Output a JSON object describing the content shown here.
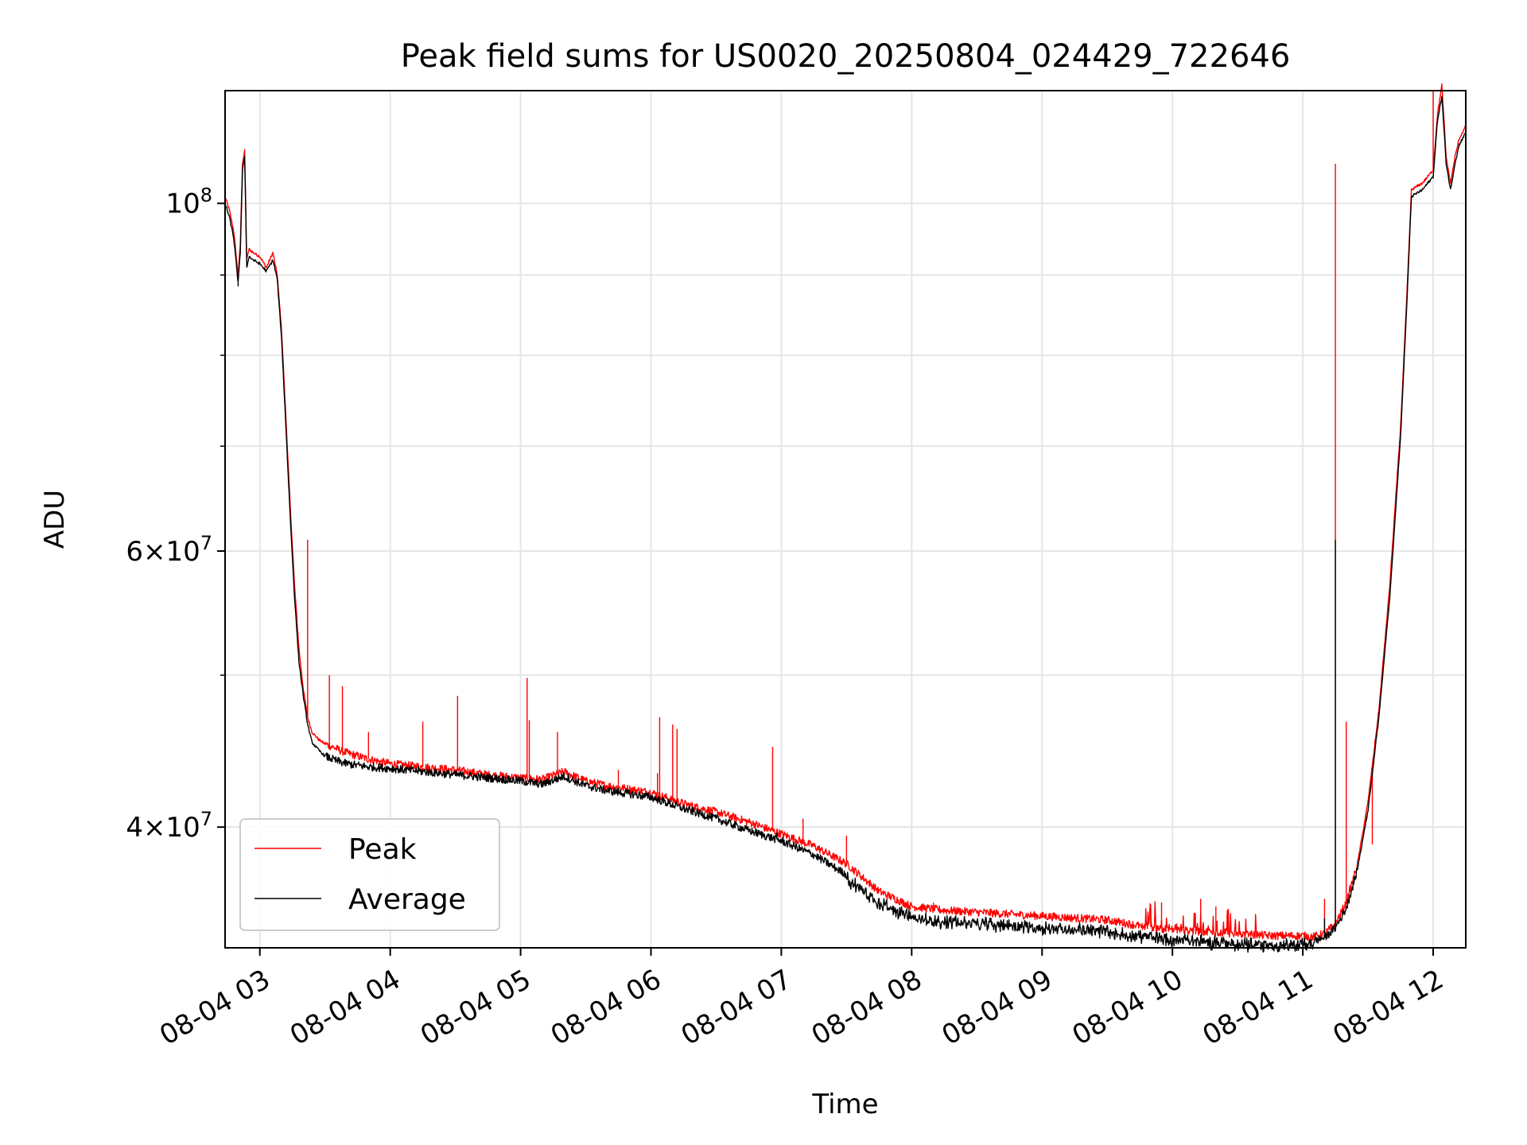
{
  "chart_data": {
    "type": "line",
    "title": "Peak field sums for US0020_20250804_024429_722646",
    "xlabel": "Time",
    "ylabel": "ADU",
    "x_unit": "time of day on 2025-08-04",
    "x_tick_labels": [
      "08-04 03",
      "08-04 04",
      "08-04 05",
      "08-04 06",
      "08-04 07",
      "08-04 08",
      "08-04 09",
      "08-04 10",
      "08-04 11",
      "08-04 12"
    ],
    "x_tick_times": [
      "03:00",
      "04:00",
      "05:00",
      "06:00",
      "07:00",
      "08:00",
      "09:00",
      "10:00",
      "11:00",
      "12:00"
    ],
    "xlim": [
      "02:44",
      "12:15"
    ],
    "y_scale": "log",
    "ylim": [
      33500000,
      118000000
    ],
    "y_major_ticks": [
      {
        "value": 100000000,
        "base": "10",
        "exp": "8",
        "mantissa": ""
      },
      {
        "value": 60000000,
        "base": "10",
        "exp": "7",
        "mantissa": "6"
      },
      {
        "value": 40000000,
        "base": "10",
        "exp": "7",
        "mantissa": "4"
      }
    ],
    "y_minor_ticks": [
      40000000,
      50000000,
      60000000,
      70000000,
      80000000,
      90000000
    ],
    "grid": true,
    "legend_position": "lower-left",
    "series": [
      {
        "name": "Peak",
        "color": "#ff0000",
        "x": [
          "02:44",
          "02:46",
          "02:48",
          "02:50",
          "02:51",
          "02:52",
          "02:53",
          "02:54",
          "02:55",
          "02:57",
          "03:00",
          "03:03",
          "03:06",
          "03:08",
          "03:10",
          "03:12",
          "03:14",
          "03:16",
          "03:18",
          "03:20",
          "03:22",
          "03:24",
          "03:27",
          "03:30",
          "03:35",
          "03:40",
          "03:50",
          "04:00",
          "04:15",
          "04:30",
          "04:45",
          "05:00",
          "05:10",
          "05:20",
          "05:30",
          "05:40",
          "05:50",
          "06:00",
          "06:15",
          "06:30",
          "06:45",
          "07:00",
          "07:15",
          "07:30",
          "07:45",
          "08:00",
          "08:15",
          "08:30",
          "08:45",
          "09:00",
          "09:15",
          "09:30",
          "09:45",
          "10:00",
          "10:15",
          "10:30",
          "10:45",
          "11:00",
          "11:05",
          "11:10",
          "11:15",
          "11:20",
          "11:25",
          "11:30",
          "11:35",
          "11:40",
          "11:45",
          "11:48",
          "11:50",
          "11:55",
          "12:00",
          "12:02",
          "12:04",
          "12:06",
          "12:08",
          "12:10",
          "12:12",
          "12:15"
        ],
        "y": [
          101000000,
          99000000,
          96000000,
          90000000,
          94000000,
          106000000,
          108000000,
          92000000,
          93500000,
          93000000,
          92500000,
          91000000,
          93000000,
          90000000,
          83000000,
          73000000,
          64000000,
          57000000,
          52000000,
          49000000,
          47000000,
          46000000,
          45500000,
          45200000,
          44900000,
          44600000,
          44200000,
          43900000,
          43700000,
          43500000,
          43200000,
          43000000,
          42900000,
          43400000,
          42800000,
          42500000,
          42300000,
          42100000,
          41400000,
          40900000,
          40300000,
          39600000,
          38900000,
          37900000,
          36400000,
          35600000,
          35400000,
          35300000,
          35200000,
          35100000,
          35000000,
          34900000,
          34600000,
          34400000,
          34300000,
          34200000,
          34100000,
          34100000,
          34050000,
          34200000,
          34700000,
          35800000,
          37800000,
          41500000,
          47500000,
          57000000,
          72000000,
          88000000,
          102000000,
          103000000,
          105000000,
          114000000,
          119000000,
          107000000,
          103000000,
          107000000,
          110000000,
          112000000
        ],
        "spikes": [
          {
            "x": "02:53",
            "y": 108000000
          },
          {
            "x": "03:22",
            "y": 61000000
          },
          {
            "x": "03:32",
            "y": 50000000
          },
          {
            "x": "03:38",
            "y": 49200000
          },
          {
            "x": "03:50",
            "y": 46000000
          },
          {
            "x": "04:15",
            "y": 46700000
          },
          {
            "x": "04:31",
            "y": 48500000
          },
          {
            "x": "05:03",
            "y": 49800000
          },
          {
            "x": "05:04",
            "y": 46800000
          },
          {
            "x": "05:17",
            "y": 46000000
          },
          {
            "x": "05:45",
            "y": 43500000
          },
          {
            "x": "06:03",
            "y": 43300000
          },
          {
            "x": "06:04",
            "y": 47000000
          },
          {
            "x": "06:10",
            "y": 46500000
          },
          {
            "x": "06:12",
            "y": 46200000
          },
          {
            "x": "06:56",
            "y": 45000000
          },
          {
            "x": "07:10",
            "y": 40500000
          },
          {
            "x": "07:30",
            "y": 39500000
          },
          {
            "x": "08:10",
            "y": 35800000
          },
          {
            "x": "09:50",
            "y": 35700000
          },
          {
            "x": "09:55",
            "y": 35800000
          },
          {
            "x": "10:13",
            "y": 36000000
          },
          {
            "x": "10:20",
            "y": 35600000
          },
          {
            "x": "11:10",
            "y": 36000000
          },
          {
            "x": "11:15",
            "y": 106000000
          },
          {
            "x": "11:20",
            "y": 46700000
          },
          {
            "x": "11:29",
            "y": 40300000
          },
          {
            "x": "11:32",
            "y": 39000000
          },
          {
            "x": "12:00",
            "y": 118000000
          }
        ]
      },
      {
        "name": "Average",
        "color": "#000000",
        "x": [
          "02:44",
          "02:46",
          "02:48",
          "02:50",
          "02:51",
          "02:52",
          "02:53",
          "02:54",
          "02:55",
          "02:57",
          "03:00",
          "03:03",
          "03:06",
          "03:08",
          "03:10",
          "03:12",
          "03:14",
          "03:16",
          "03:18",
          "03:20",
          "03:22",
          "03:24",
          "03:27",
          "03:30",
          "03:35",
          "03:40",
          "03:50",
          "04:00",
          "04:15",
          "04:30",
          "04:45",
          "05:00",
          "05:10",
          "05:20",
          "05:30",
          "05:40",
          "05:50",
          "06:00",
          "06:15",
          "06:30",
          "06:45",
          "07:00",
          "07:15",
          "07:30",
          "07:45",
          "08:00",
          "08:15",
          "08:30",
          "08:45",
          "09:00",
          "09:15",
          "09:30",
          "09:45",
          "10:00",
          "10:15",
          "10:30",
          "10:45",
          "11:00",
          "11:05",
          "11:10",
          "11:15",
          "11:20",
          "11:25",
          "11:30",
          "11:35",
          "11:40",
          "11:45",
          "11:48",
          "11:50",
          "11:55",
          "12:00",
          "12:02",
          "12:04",
          "12:06",
          "12:08",
          "12:10",
          "12:12",
          "12:15"
        ],
        "y": [
          100000000,
          98000000,
          95000000,
          89000000,
          93000000,
          105000000,
          107000000,
          91000000,
          92500000,
          92000000,
          91500000,
          90500000,
          92000000,
          89500000,
          82000000,
          72000000,
          63000000,
          56000000,
          51000000,
          48500000,
          46500000,
          45300000,
          44800000,
          44400000,
          44100000,
          43900000,
          43700000,
          43600000,
          43400000,
          43200000,
          43000000,
          42800000,
          42600000,
          43100000,
          42500000,
          42200000,
          42000000,
          41800000,
          41100000,
          40500000,
          39800000,
          39200000,
          38400000,
          37300000,
          36000000,
          35200000,
          35000000,
          34900000,
          34800000,
          34700000,
          34600000,
          34500000,
          34300000,
          34100000,
          34000000,
          33900000,
          33800000,
          33800000,
          33850000,
          34000000,
          34500000,
          35500000,
          37500000,
          41000000,
          47000000,
          56000000,
          71000000,
          87000000,
          101000000,
          102000000,
          104000000,
          113000000,
          117000000,
          106000000,
          102000000,
          106000000,
          109000000,
          111000000
        ],
        "dips": [
          {
            "x": "02:50",
            "y": 88500000
          },
          {
            "x": "02:53",
            "y": 107000000
          },
          {
            "x": "05:20",
            "y": 43300000
          },
          {
            "x": "06:47",
            "y": 39800000
          },
          {
            "x": "06:58",
            "y": 39700000
          },
          {
            "x": "10:42",
            "y": 33400000
          },
          {
            "x": "10:50",
            "y": 33500000
          },
          {
            "x": "11:00",
            "y": 33300000
          },
          {
            "x": "11:15",
            "y": 61000000
          },
          {
            "x": "11:10",
            "y": 35000000
          },
          {
            "x": "11:21",
            "y": 36000000
          }
        ]
      }
    ]
  }
}
